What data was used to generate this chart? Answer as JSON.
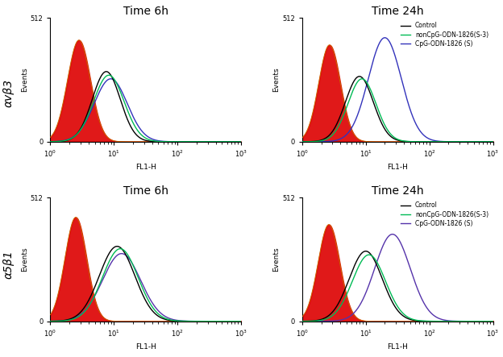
{
  "title_top_left": "Time 6h",
  "title_top_right": "Time 24h",
  "title_bottom_left": "Time 6h",
  "title_bottom_right": "Time 24h",
  "ylabel_top": "αvβ3",
  "ylabel_bottom": "α5β1",
  "xlabel": "FL1-H",
  "ylabel_shared": "Events",
  "legend_labels": [
    "Control",
    "nonCpG-ODN-1826(S-3)",
    "CpG-ODN-1826 (S)"
  ],
  "legend_colors_top": [
    "black",
    "#00bb55",
    "#3333bb"
  ],
  "legend_colors_bottom": [
    "black",
    "#00bb55",
    "#5533aa"
  ],
  "background_color": "#ffffff",
  "red_fill_color": "#dd0000",
  "red_edge_color": "#cc6600",
  "panels": {
    "top_left": {
      "red_mu": 0.45,
      "red_sigma": 0.18,
      "red_scale": 420,
      "black_mu": 0.88,
      "black_sigma": 0.22,
      "black_scale": 290,
      "green_mu": 0.92,
      "green_sigma": 0.24,
      "green_scale": 275,
      "blue_mu": 0.95,
      "blue_sigma": 0.26,
      "blue_scale": 260,
      "blue_color": "#3333bb"
    },
    "top_right": {
      "red_mu": 0.43,
      "red_sigma": 0.17,
      "red_scale": 400,
      "black_mu": 0.9,
      "black_sigma": 0.22,
      "black_scale": 270,
      "green_mu": 0.94,
      "green_sigma": 0.22,
      "green_scale": 260,
      "blue_mu": 1.3,
      "blue_sigma": 0.26,
      "blue_scale": 430,
      "blue_color": "#3333bb"
    },
    "bottom_left": {
      "red_mu": 0.4,
      "red_sigma": 0.17,
      "red_scale": 430,
      "black_mu": 1.05,
      "black_sigma": 0.28,
      "black_scale": 310,
      "green_mu": 1.1,
      "green_sigma": 0.28,
      "green_scale": 300,
      "blue_mu": 1.12,
      "blue_sigma": 0.3,
      "blue_scale": 280,
      "blue_color": "#5533aa"
    },
    "bottom_right": {
      "red_mu": 0.42,
      "red_sigma": 0.17,
      "red_scale": 400,
      "black_mu": 1.0,
      "black_sigma": 0.26,
      "black_scale": 290,
      "green_mu": 1.05,
      "green_sigma": 0.26,
      "green_scale": 275,
      "blue_mu": 1.42,
      "blue_sigma": 0.28,
      "blue_scale": 360,
      "blue_color": "#5533aa"
    }
  }
}
